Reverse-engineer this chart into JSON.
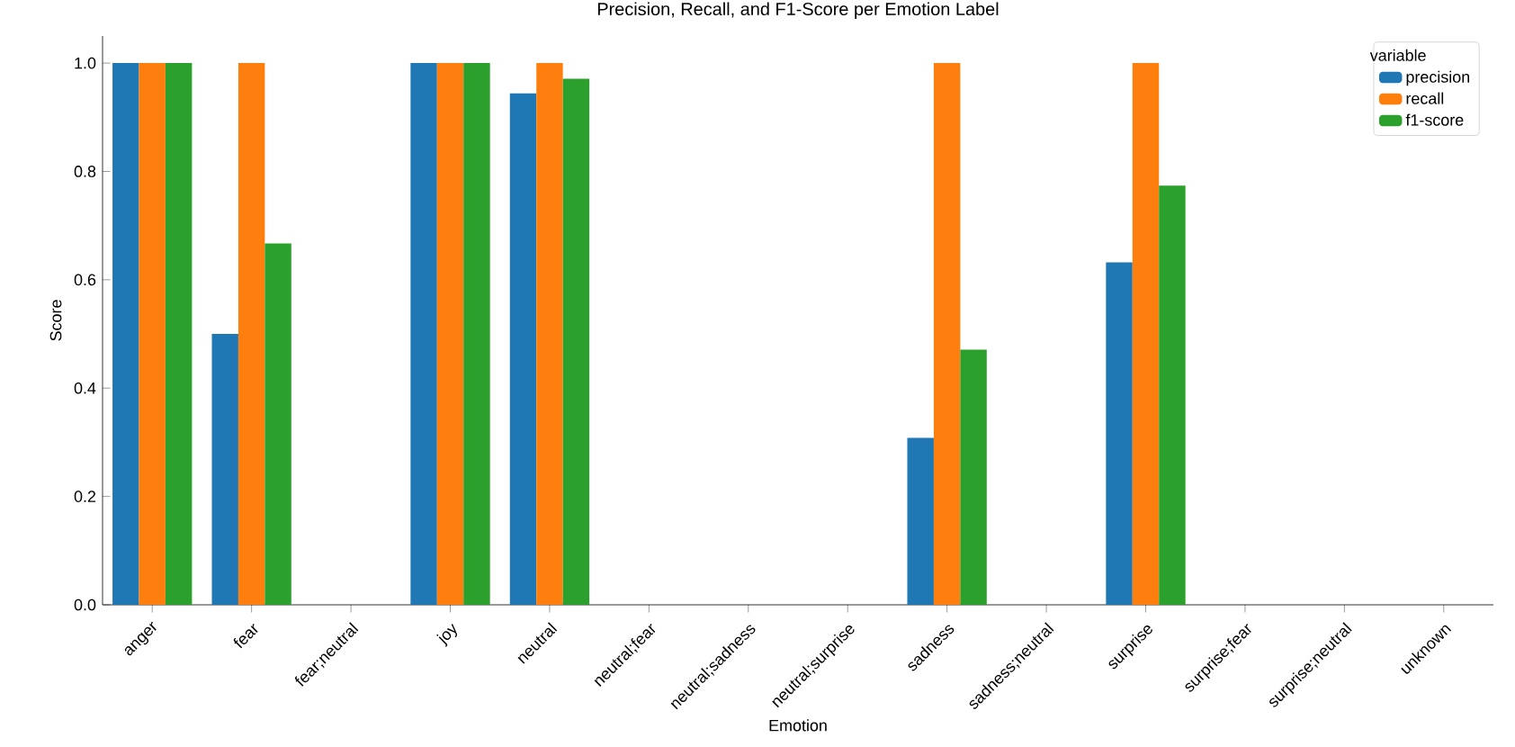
{
  "chart_data": {
    "type": "bar",
    "title": "Precision, Recall, and F1-Score per Emotion Label",
    "xlabel": "Emotion",
    "ylabel": "Score",
    "legend_title": "variable",
    "legend": "top right",
    "categories": [
      "anger",
      "fear",
      "fear;neutral",
      "joy",
      "neutral",
      "neutral;fear",
      "neutral;sadness",
      "neutral;surprise",
      "sadness",
      "sadness;neutral",
      "surprise",
      "surprise;fear",
      "surprise;neutral",
      "unknown"
    ],
    "series": [
      {
        "name": "precision",
        "color": "#1f77b4",
        "values": [
          1.0,
          0.5,
          0,
          1.0,
          0.944,
          0,
          0,
          0,
          0.308,
          0,
          0.632,
          0,
          0,
          0
        ]
      },
      {
        "name": "recall",
        "color": "#ff7f0e",
        "values": [
          1.0,
          1.0,
          0,
          1.0,
          1.0,
          0,
          0,
          0,
          1.0,
          0,
          1.0,
          0,
          0,
          0
        ]
      },
      {
        "name": "f1-score",
        "color": "#2ca02c",
        "values": [
          1.0,
          0.667,
          0,
          1.0,
          0.971,
          0,
          0,
          0,
          0.471,
          0,
          0.774,
          0,
          0,
          0
        ]
      }
    ],
    "ylim": [
      0,
      1.05
    ],
    "yticks": [
      {
        "value": 0,
        "label": "0.0"
      },
      {
        "value": 0.2,
        "label": "0.2"
      },
      {
        "value": 0.4,
        "label": "0.4"
      },
      {
        "value": 0.6,
        "label": "0.6"
      },
      {
        "value": 0.8,
        "label": "0.8"
      },
      {
        "value": 1.0,
        "label": "1.0"
      }
    ]
  }
}
